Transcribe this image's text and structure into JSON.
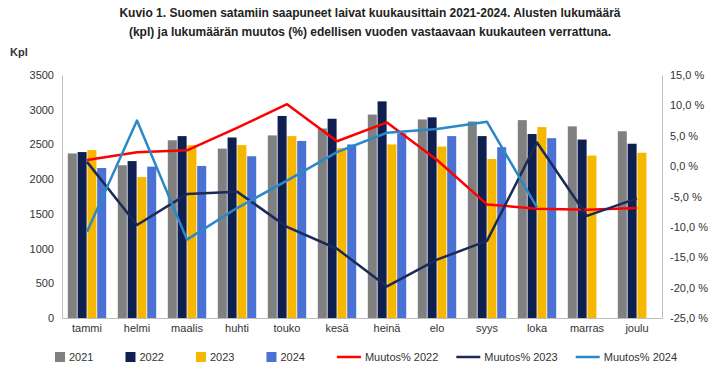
{
  "chart_data": {
    "type": "bar",
    "title": [
      "Kuvio  1. Suomen satamiin saapuneet laivat kuukausittain 2021-2024.  Alusten lukumäärä",
      "(kpl) ja lukumäärän muutos (%) edellisen vuoden vastaavaan kuukauteen verrattuna."
    ],
    "y_label": "Kpl",
    "categories": [
      "tammi",
      "helmi",
      "maalis",
      "huhti",
      "touko",
      "kesä",
      "heinä",
      "elo",
      "syys",
      "loka",
      "marras",
      "joulu"
    ],
    "ylim": [
      0,
      3500
    ],
    "yticks": [
      0,
      500,
      1000,
      1500,
      2000,
      2500,
      3000,
      3500
    ],
    "y2lim": [
      -25,
      15
    ],
    "y2ticks": [
      {
        "value": -25,
        "label": "-25,0 %"
      },
      {
        "value": -20,
        "label": "-20,0 %"
      },
      {
        "value": -15,
        "label": "-15,0 %"
      },
      {
        "value": -10,
        "label": "-10,0 %"
      },
      {
        "value": -5,
        "label": "-5,0 %"
      },
      {
        "value": 0,
        "label": "0,0 %"
      },
      {
        "value": 5,
        "label": "5,0 %"
      },
      {
        "value": 10,
        "label": "10,0 %"
      },
      {
        "value": 15,
        "label": "15,0 %"
      }
    ],
    "grid": false,
    "legend": "bottom",
    "series": [
      {
        "name": "2021",
        "type": "bar",
        "color": "#808080",
        "values": [
          2370,
          2200,
          2560,
          2440,
          2630,
          2730,
          2930,
          2860,
          2830,
          2850,
          2760,
          2690
        ]
      },
      {
        "name": "2022",
        "type": "bar",
        "color": "#0f1f50",
        "values": [
          2390,
          2260,
          2620,
          2600,
          2910,
          2870,
          3120,
          2890,
          2620,
          2650,
          2570,
          2510
        ]
      },
      {
        "name": "2023",
        "type": "bar",
        "color": "#f5b700",
        "values": [
          2420,
          2030,
          2490,
          2490,
          2620,
          2450,
          2500,
          2470,
          2290,
          2750,
          2340,
          2380
        ]
      },
      {
        "name": "2024",
        "type": "bar",
        "color": "#4a72d4",
        "values": [
          2160,
          2180,
          2190,
          2330,
          2550,
          2500,
          2660,
          2620,
          2460,
          2590,
          null,
          null
        ]
      },
      {
        "name": "Muutos% 2022",
        "type": "line",
        "axis": "y2",
        "color": "#ff0000",
        "values": [
          1.0,
          2.3,
          2.6,
          6.3,
          10.2,
          4.1,
          7.2,
          1.0,
          -6.3,
          -7.0,
          -7.2,
          -6.9
        ]
      },
      {
        "name": "Muutos% 2023",
        "type": "line",
        "axis": "y2",
        "color": "#1c2a57",
        "values": [
          0.7,
          -9.7,
          -4.6,
          -4.2,
          -10.0,
          -13.6,
          -19.8,
          -15.4,
          -12.3,
          3.9,
          -8.2,
          -5.3
        ]
      },
      {
        "name": "Muutos% 2024",
        "type": "line",
        "axis": "y2",
        "color": "#2a88c8",
        "values": [
          -10.8,
          7.5,
          -12.1,
          -6.9,
          -2.4,
          2.3,
          5.5,
          6.1,
          7.3,
          -6.8,
          null,
          null
        ]
      }
    ]
  }
}
